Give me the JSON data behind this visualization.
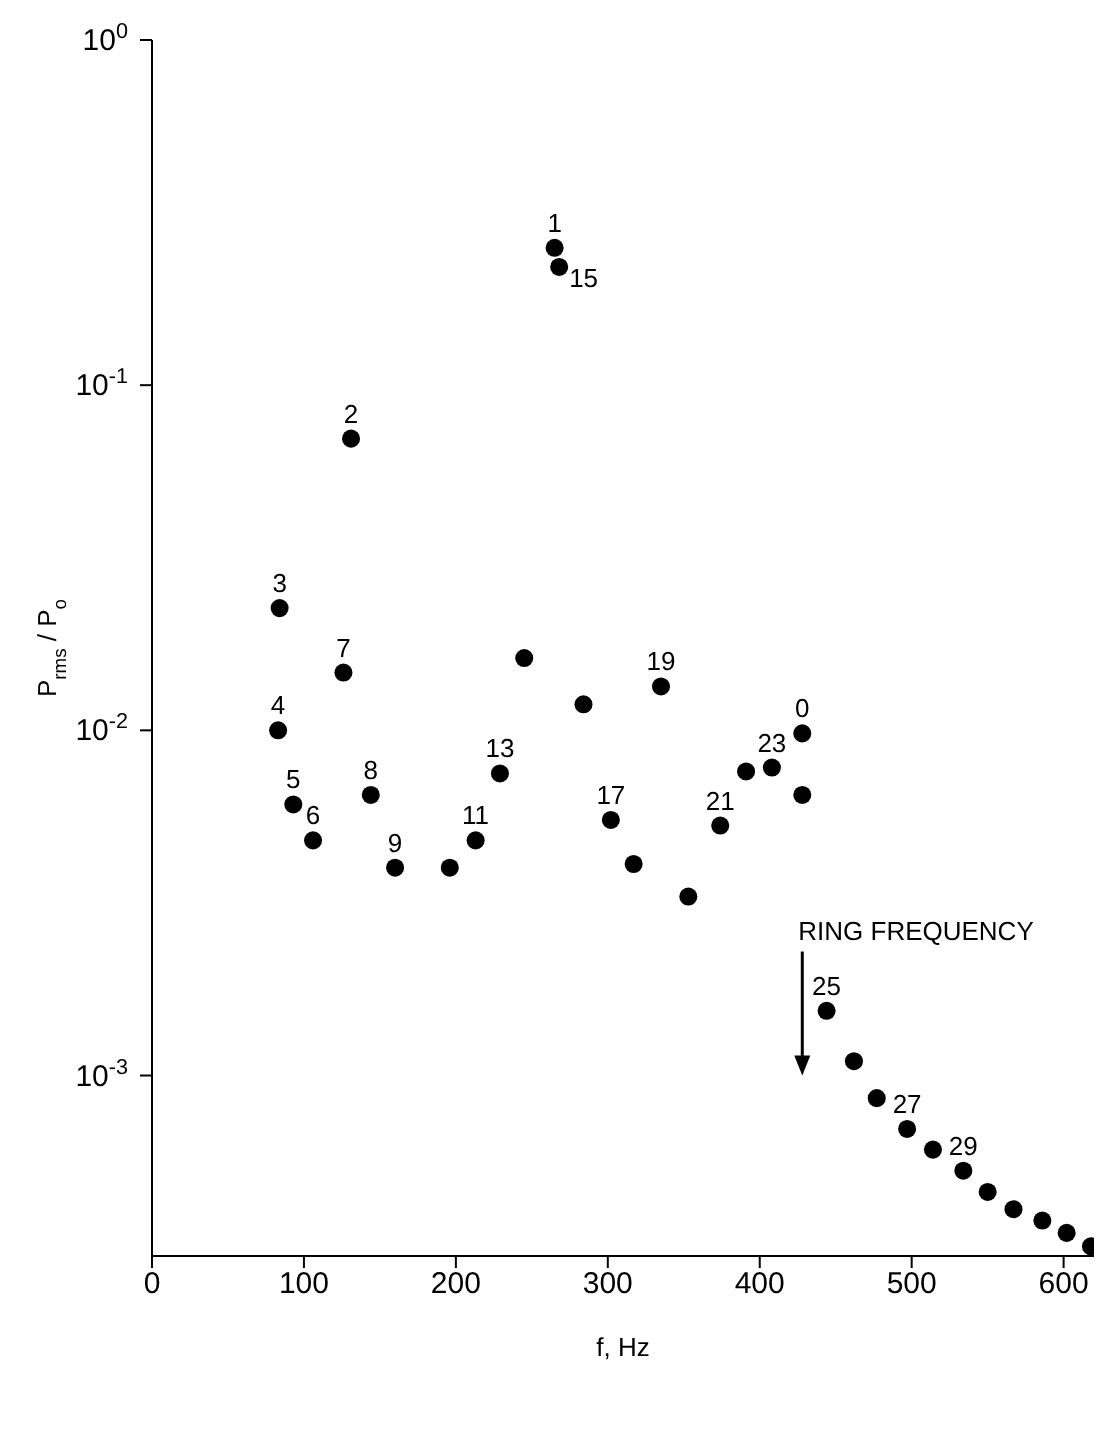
{
  "chart_data": {
    "type": "scatter",
    "xlabel": "f, Hz",
    "ylabel": "P$_{rms}$ / P$_{o}$",
    "x": [
      265,
      268,
      131,
      84,
      126,
      245,
      83,
      229,
      144,
      93,
      106,
      213,
      160,
      196,
      284,
      335,
      428,
      408,
      391,
      428,
      302,
      374,
      317,
      353,
      444,
      462,
      477,
      497,
      514,
      534,
      550,
      567,
      586,
      602,
      618
    ],
    "series": [
      {
        "color": "#000000",
        "values": [
          0.25,
          0.22,
          0.07,
          0.0226,
          0.0147,
          0.0162,
          0.01,
          0.0075,
          0.0065,
          0.0061,
          0.0048,
          0.0048,
          0.004,
          0.004,
          0.0119,
          0.0134,
          0.0098,
          0.0078,
          0.0076,
          0.0065,
          0.0055,
          0.0053,
          0.0041,
          0.0033,
          0.00154,
          0.0011,
          0.00086,
          0.0007,
          0.00061,
          0.00053,
          0.00046,
          0.00041,
          0.00038,
          0.00035,
          0.00032
        ]
      }
    ],
    "xlim": [
      0,
      620
    ],
    "xticks": [
      0,
      100,
      200,
      300,
      400,
      500,
      600
    ],
    "ylim": [
      0.0003,
      1
    ],
    "yticks": [
      {
        "value": 0.001,
        "label": "10$^{-3}$"
      },
      {
        "value": 0.01,
        "label": "10$^{-2}$"
      },
      {
        "value": 0.1,
        "label": "10$^{-1}$"
      },
      {
        "value": 1,
        "label": "10$^{0}$"
      }
    ],
    "log": "y",
    "grid": false,
    "legend": false,
    "marker": "circle",
    "annotations": [
      {
        "text": "1",
        "x": 265,
        "y": 0.25
      },
      {
        "text": "15",
        "x": 268,
        "y": 0.22
      },
      {
        "text": "2",
        "x": 131,
        "y": 0.07
      },
      {
        "text": "3",
        "x": 84,
        "y": 0.0226
      },
      {
        "text": "7",
        "x": 126,
        "y": 0.0147
      },
      {
        "text": "4",
        "x": 83,
        "y": 0.01
      },
      {
        "text": "13",
        "x": 229,
        "y": 0.0075
      },
      {
        "text": "8",
        "x": 144,
        "y": 0.0065
      },
      {
        "text": "5",
        "x": 93,
        "y": 0.0061
      },
      {
        "text": "6",
        "x": 106,
        "y": 0.0048
      },
      {
        "text": "11",
        "x": 213,
        "y": 0.0048
      },
      {
        "text": "9",
        "x": 160,
        "y": 0.004
      },
      {
        "text": "19",
        "x": 335,
        "y": 0.0134
      },
      {
        "text": "0",
        "x": 428,
        "y": 0.0098
      },
      {
        "text": "23",
        "x": 408,
        "y": 0.0078
      },
      {
        "text": "17",
        "x": 302,
        "y": 0.0055
      },
      {
        "text": "21",
        "x": 374,
        "y": 0.0053
      },
      {
        "text": "25",
        "x": 444,
        "y": 0.00154
      },
      {
        "text": "27",
        "x": 497,
        "y": 0.0007
      },
      {
        "text": "29",
        "x": 534,
        "y": 0.00053
      }
    ],
    "ref_lines": [
      {
        "axis": "x",
        "value": 428,
        "label": "RING FREQUENCY"
      }
    ]
  }
}
